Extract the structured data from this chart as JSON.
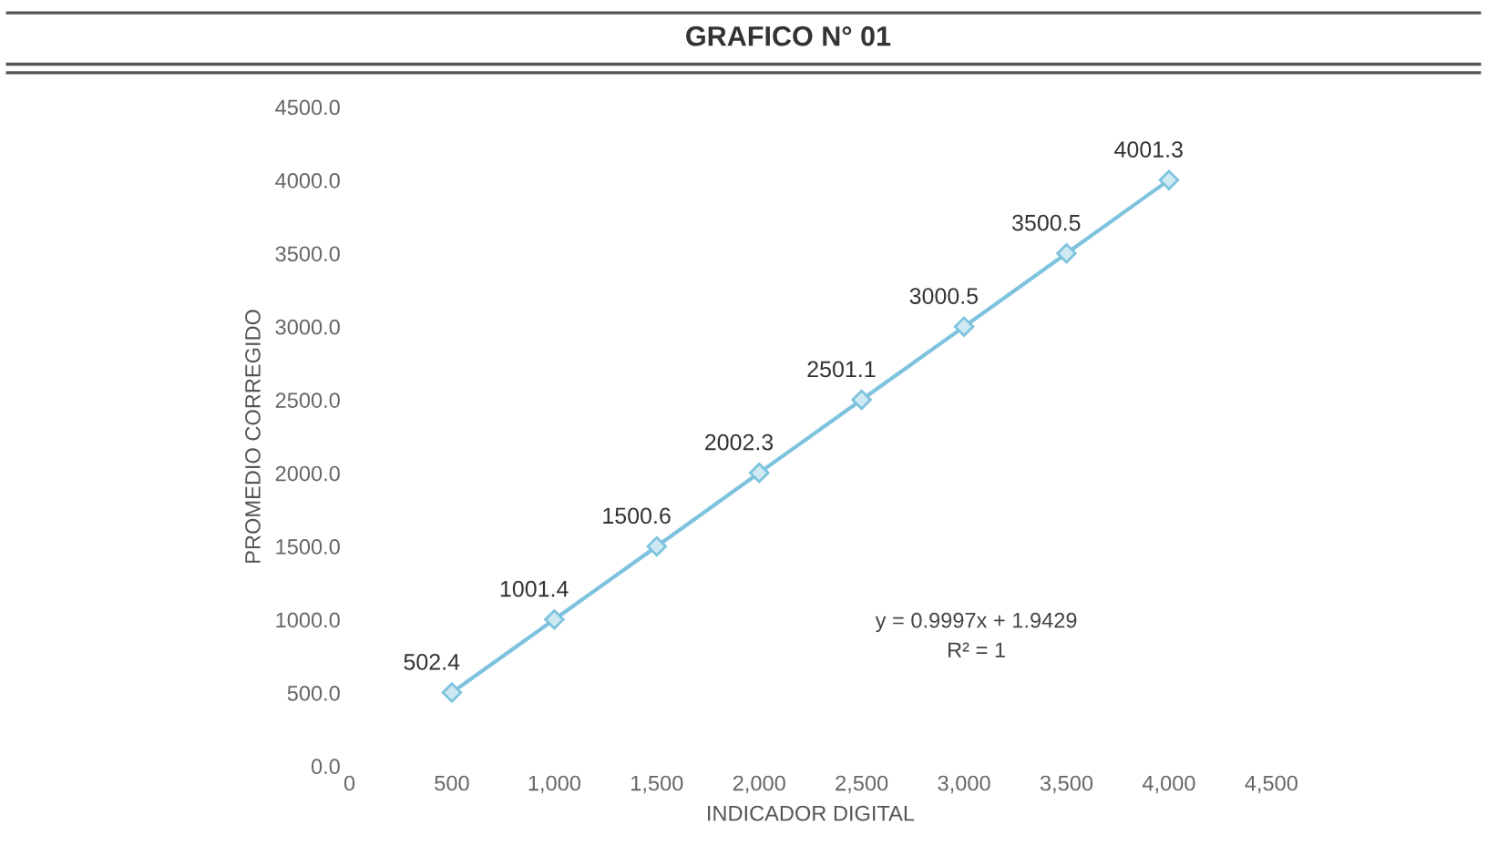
{
  "chart_data": {
    "type": "line",
    "title": "GRAFICO N° 01",
    "xlabel": "INDICADOR DIGITAL",
    "ylabel": "PROMEDIO CORREGIDO",
    "x": [
      500,
      1000,
      1500,
      2000,
      2500,
      3000,
      3500,
      4000
    ],
    "series": [
      {
        "color": "#7ec3de",
        "values": [
          502.4,
          1001.4,
          1500.6,
          2002.3,
          2501.1,
          3000.5,
          3500.5,
          4001.3
        ]
      }
    ],
    "marker": "diamond",
    "line_style": "solid",
    "data_labels": true,
    "grid": false,
    "legend": false,
    "xlim": [
      0,
      4500
    ],
    "xticks": [
      0,
      500,
      {
        "value": 1000,
        "label": "1,000"
      },
      {
        "value": 1500,
        "label": "1,500"
      },
      {
        "value": 2000,
        "label": "2,000"
      },
      {
        "value": 2500,
        "label": "2,500"
      },
      {
        "value": 3000,
        "label": "3,000"
      },
      {
        "value": 3500,
        "label": "3,500"
      },
      {
        "value": 4000,
        "label": "4,000"
      },
      {
        "value": 4500,
        "label": "4,500"
      }
    ],
    "ylim": [
      0,
      4500
    ],
    "yticks": [
      {
        "value": 0,
        "label": "0.0"
      },
      {
        "value": 500,
        "label": "500.0"
      },
      {
        "value": 1000,
        "label": "1000.0"
      },
      {
        "value": 1500,
        "label": "1500.0"
      },
      {
        "value": 2000,
        "label": "2000.0"
      },
      {
        "value": 2500,
        "label": "2500.0"
      },
      {
        "value": 3000,
        "label": "3000.0"
      },
      {
        "value": 3500,
        "label": "3500.0"
      },
      {
        "value": 4000,
        "label": "4000.0"
      },
      {
        "value": 4500,
        "label": "4500.0"
      }
    ],
    "annotations": [
      "y = 0.9997x + 1.9429",
      "R² = 1"
    ]
  }
}
